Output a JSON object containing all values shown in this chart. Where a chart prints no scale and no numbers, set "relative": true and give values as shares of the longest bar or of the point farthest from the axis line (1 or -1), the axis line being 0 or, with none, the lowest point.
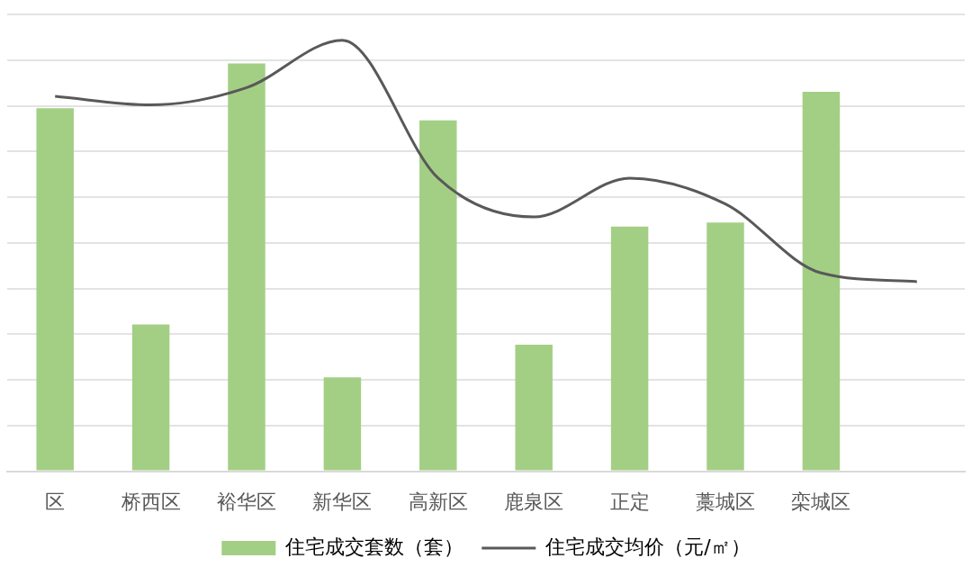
{
  "chart_data": {
    "type": "bar",
    "relative": true,
    "categories": [
      "区",
      "桥西区",
      "裕华区",
      "新华区",
      "高新区",
      "鹿泉区",
      "正定",
      "藁城区",
      "栾城区",
      null
    ],
    "series": [
      {
        "name": "住宅成交套数（套）",
        "color": "#a3cf85",
        "values": [
          0.89,
          0.36,
          1,
          0.23,
          0.86,
          0.31,
          0.6,
          0.61,
          0.93,
          null
        ]
      },
      {
        "name": "住宅成交均价（元/㎡）",
        "type": "line",
        "axis": "y2",
        "color": "#595959",
        "values": [
          0.87,
          0.85,
          0.89,
          1,
          0.68,
          0.59,
          0.68,
          0.62,
          0.46,
          0.44
        ]
      }
    ],
    "grid": "y",
    "legend": "bottom",
    "marker": "none"
  }
}
